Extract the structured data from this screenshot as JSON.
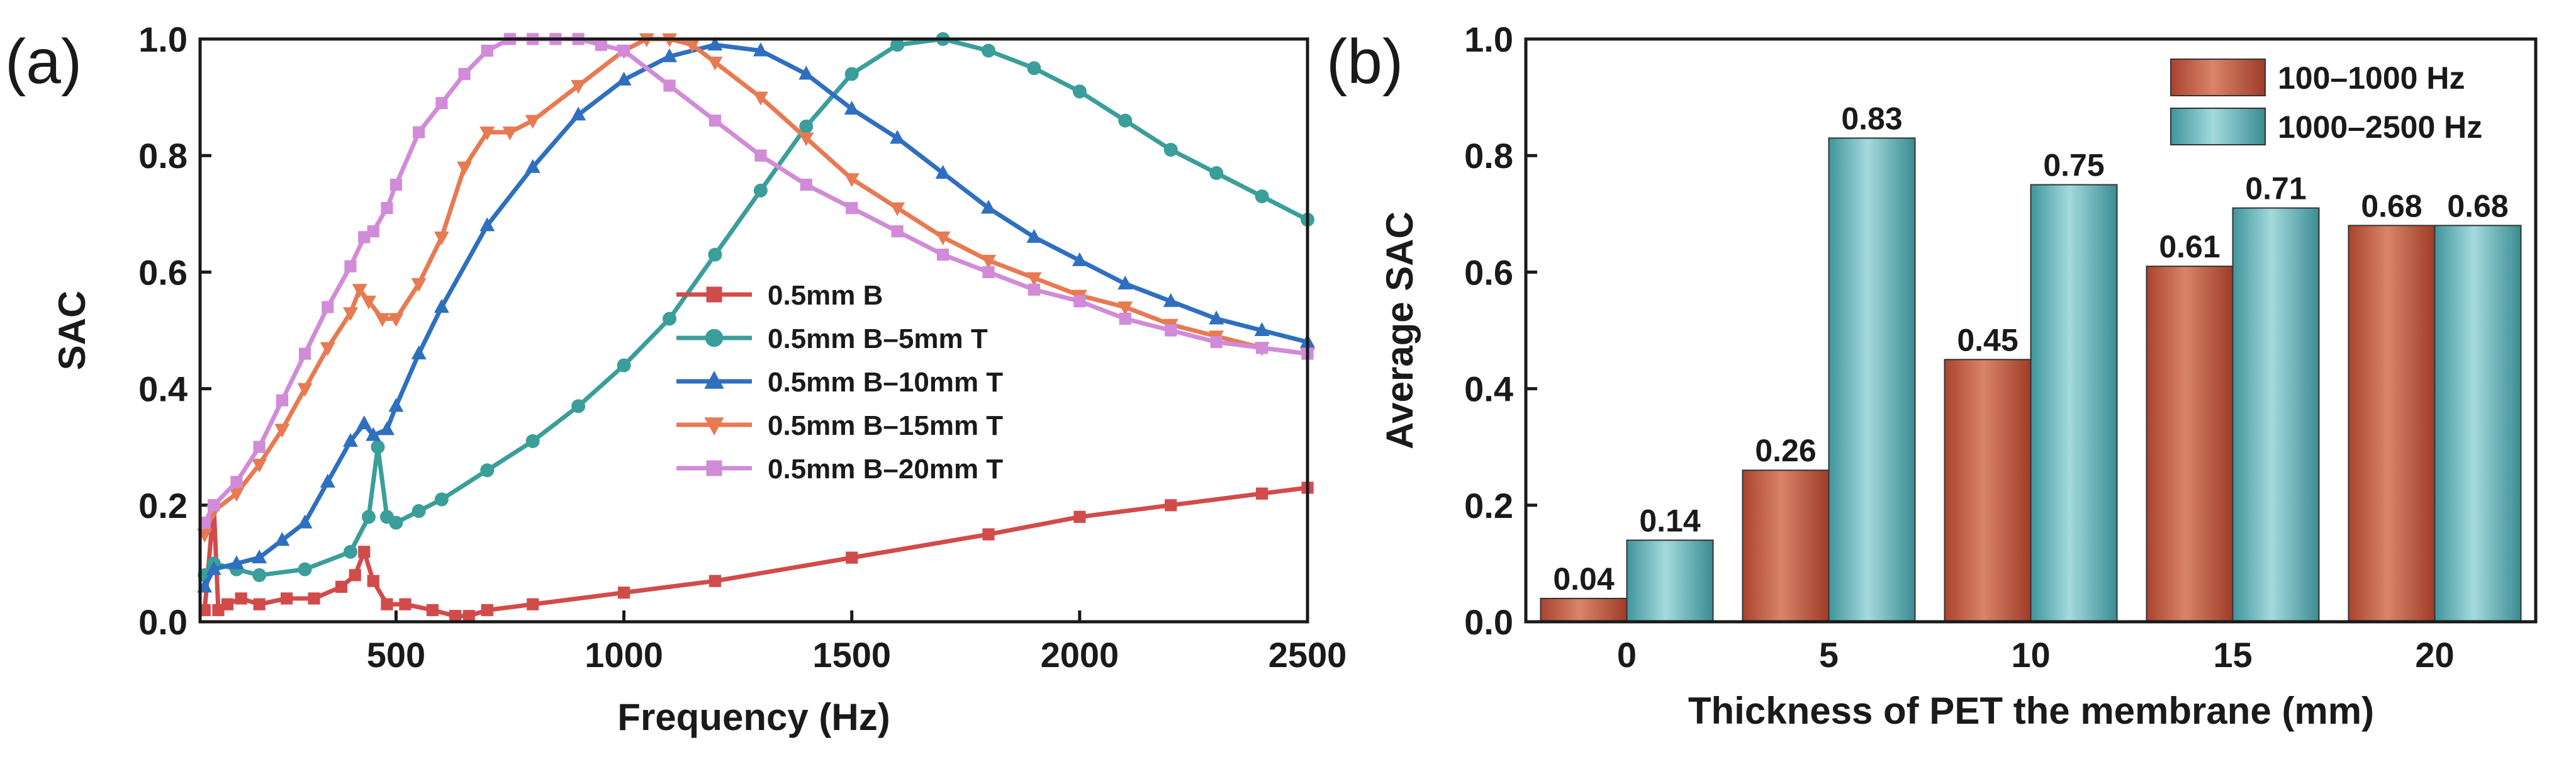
{
  "chart_data": [
    {
      "panel": "(a)",
      "type": "line",
      "title": "",
      "xlabel": "Frequency (Hz)",
      "ylabel": "SAC",
      "xlim": [
        70,
        2500
      ],
      "ylim": [
        0,
        1.0
      ],
      "xticks": [
        500,
        1000,
        1500,
        2000,
        2500
      ],
      "yticks": [
        0.0,
        0.2,
        0.4,
        0.6,
        0.8,
        1.0
      ],
      "xtick_labels": [
        "500",
        "1000",
        "1500",
        "2000",
        "2500"
      ],
      "ytick_labels": [
        "0.0",
        "0.2",
        "0.4",
        "0.6",
        "0.8",
        "1.0"
      ],
      "legend_position": "center-right",
      "series": [
        {
          "name": "0.5mm B",
          "color": "#d24b4b",
          "marker": "square",
          "x": [
            80,
            100,
            110,
            130,
            160,
            200,
            260,
            320,
            380,
            410,
            430,
            450,
            480,
            520,
            580,
            630,
            660,
            700,
            800,
            1000,
            1200,
            1500,
            1800,
            2000,
            2200,
            2400,
            2500
          ],
          "y": [
            0.02,
            0.2,
            0.02,
            0.03,
            0.04,
            0.03,
            0.04,
            0.04,
            0.06,
            0.08,
            0.12,
            0.07,
            0.03,
            0.03,
            0.02,
            0.01,
            0.01,
            0.02,
            0.03,
            0.05,
            0.07,
            0.11,
            0.15,
            0.18,
            0.2,
            0.22,
            0.23
          ]
        },
        {
          "name": "0.5mm B–5mm T",
          "color": "#3a9e9a",
          "marker": "circle",
          "x": [
            80,
            100,
            150,
            200,
            300,
            400,
            440,
            460,
            480,
            500,
            550,
            600,
            700,
            800,
            900,
            1000,
            1100,
            1200,
            1300,
            1400,
            1500,
            1600,
            1700,
            1800,
            1900,
            2000,
            2100,
            2200,
            2300,
            2400,
            2500
          ],
          "y": [
            0.08,
            0.1,
            0.09,
            0.08,
            0.09,
            0.12,
            0.18,
            0.3,
            0.18,
            0.17,
            0.19,
            0.21,
            0.26,
            0.31,
            0.37,
            0.44,
            0.52,
            0.63,
            0.74,
            0.85,
            0.94,
            0.99,
            1.0,
            0.98,
            0.95,
            0.91,
            0.86,
            0.81,
            0.77,
            0.73,
            0.69
          ]
        },
        {
          "name": "0.5mm B–10mm T",
          "color": "#2e6fc0",
          "marker": "triangle-up",
          "x": [
            80,
            100,
            150,
            200,
            250,
            300,
            350,
            400,
            430,
            450,
            480,
            500,
            550,
            600,
            700,
            800,
            900,
            1000,
            1100,
            1200,
            1300,
            1400,
            1500,
            1600,
            1700,
            1800,
            1900,
            2000,
            2100,
            2200,
            2300,
            2400,
            2500
          ],
          "y": [
            0.06,
            0.09,
            0.1,
            0.11,
            0.14,
            0.17,
            0.24,
            0.31,
            0.34,
            0.32,
            0.33,
            0.37,
            0.46,
            0.54,
            0.68,
            0.78,
            0.87,
            0.93,
            0.97,
            0.99,
            0.98,
            0.94,
            0.88,
            0.83,
            0.77,
            0.71,
            0.66,
            0.62,
            0.58,
            0.55,
            0.52,
            0.5,
            0.48
          ]
        },
        {
          "name": "0.5mm B–15mm T",
          "color": "#e77a52",
          "marker": "triangle-down",
          "x": [
            80,
            100,
            150,
            200,
            250,
            300,
            350,
            400,
            420,
            440,
            470,
            500,
            550,
            600,
            650,
            700,
            750,
            800,
            900,
            1000,
            1050,
            1100,
            1150,
            1200,
            1300,
            1400,
            1500,
            1600,
            1700,
            1800,
            1900,
            2000,
            2100,
            2200,
            2300,
            2400,
            2500
          ],
          "y": [
            0.15,
            0.19,
            0.22,
            0.27,
            0.33,
            0.4,
            0.47,
            0.53,
            0.57,
            0.55,
            0.52,
            0.52,
            0.58,
            0.66,
            0.78,
            0.84,
            0.84,
            0.86,
            0.92,
            0.98,
            1.0,
            1.0,
            0.99,
            0.96,
            0.9,
            0.83,
            0.76,
            0.71,
            0.66,
            0.62,
            0.59,
            0.56,
            0.54,
            0.51,
            0.49,
            0.47,
            0.46
          ]
        },
        {
          "name": "0.5mm B–20mm T",
          "color": "#d18bd8",
          "marker": "square",
          "x": [
            80,
            100,
            150,
            200,
            250,
            300,
            350,
            400,
            430,
            450,
            480,
            500,
            550,
            600,
            650,
            700,
            750,
            800,
            850,
            900,
            950,
            1000,
            1100,
            1200,
            1300,
            1400,
            1500,
            1600,
            1700,
            1800,
            1900,
            2000,
            2100,
            2200,
            2300,
            2400,
            2500
          ],
          "y": [
            0.17,
            0.2,
            0.24,
            0.3,
            0.38,
            0.46,
            0.54,
            0.61,
            0.66,
            0.67,
            0.71,
            0.75,
            0.84,
            0.89,
            0.94,
            0.98,
            1.0,
            1.0,
            1.0,
            1.0,
            0.99,
            0.98,
            0.92,
            0.86,
            0.8,
            0.75,
            0.71,
            0.67,
            0.63,
            0.6,
            0.57,
            0.55,
            0.52,
            0.5,
            0.48,
            0.47,
            0.46
          ]
        }
      ]
    },
    {
      "panel": "(b)",
      "type": "bar",
      "title": "",
      "xlabel": "Thickness of PET the membrane (mm)",
      "ylabel": "Average SAC",
      "ylim": [
        0,
        1.0
      ],
      "yticks": [
        0.0,
        0.2,
        0.4,
        0.6,
        0.8,
        1.0
      ],
      "ytick_labels": [
        "0.0",
        "0.2",
        "0.4",
        "0.6",
        "0.8",
        "1.0"
      ],
      "categories": [
        "0",
        "5",
        "10",
        "15",
        "20"
      ],
      "legend_position": "top-right",
      "series": [
        {
          "name": "100–1000 Hz",
          "color": "#c9614b",
          "values": [
            0.04,
            0.26,
            0.45,
            0.61,
            0.68
          ],
          "labels": [
            "0.04",
            "0.26",
            "0.45",
            "0.61",
            "0.68"
          ]
        },
        {
          "name": "1000–2500 Hz",
          "color": "#5fb3b9",
          "values": [
            0.14,
            0.83,
            0.75,
            0.71,
            0.68
          ],
          "labels": [
            "0.14",
            "0.83",
            "0.75",
            "0.71",
            "0.68"
          ]
        }
      ]
    }
  ]
}
